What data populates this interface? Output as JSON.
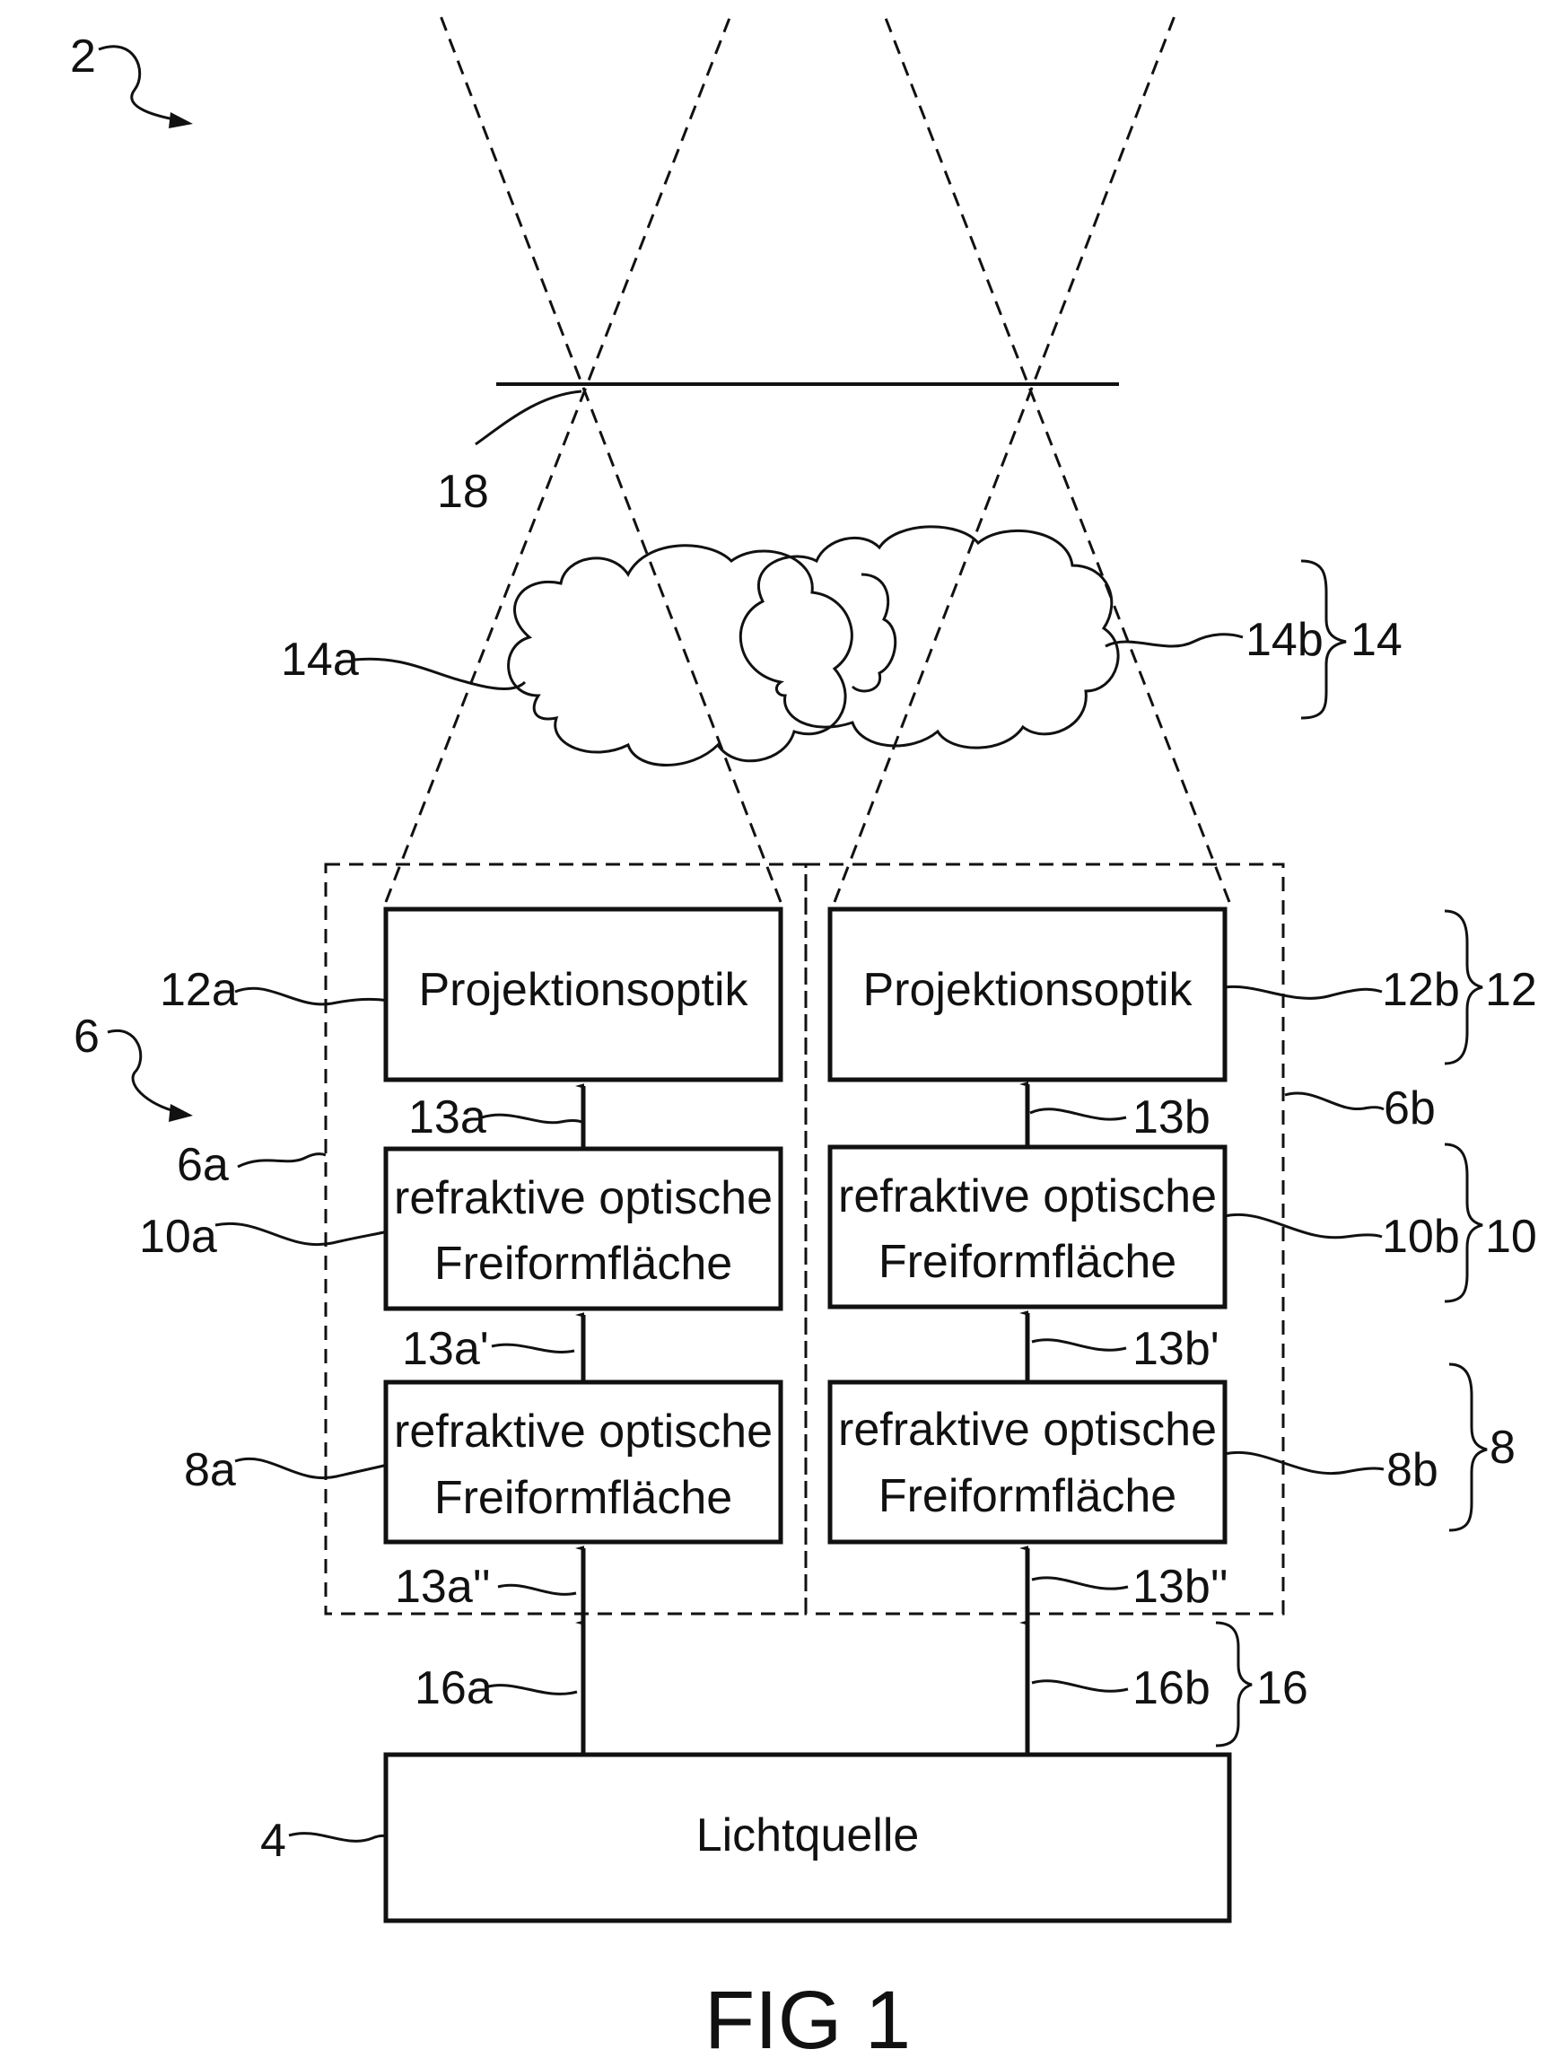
{
  "figure": {
    "caption": "FIG 1",
    "system_ref": "2",
    "group_refs": {
      "module_group": "6",
      "module_a": "6a",
      "module_b": "6b"
    },
    "boxes": {
      "light_source": "Lichtquelle",
      "projection_a": "Projektionsoptik",
      "projection_b": "Projektionsoptik",
      "freeform_10a": [
        "refraktive optische",
        "Freiformfläche"
      ],
      "freeform_10b": [
        "refraktive optische",
        "Freiformfläche"
      ],
      "freeform_8a": [
        "refraktive optische",
        "Freiformfläche"
      ],
      "freeform_8b": [
        "refraktive optische",
        "Freiformfläche"
      ]
    },
    "refs": {
      "r12a": "12a",
      "r12b": "12b",
      "r12": "12",
      "r10a": "10a",
      "r10b": "10b",
      "r10": "10",
      "r8a": "8a",
      "r8b": "8b",
      "r8": "8",
      "r13a": "13a",
      "r13b": "13b",
      "r13a1": "13a'",
      "r13b1": "13b'",
      "r13a2": "13a''",
      "r13b2": "13b''",
      "r16a": "16a",
      "r16b": "16b",
      "r16": "16",
      "r14a": "14a",
      "r14b": "14b",
      "r14": "14",
      "r18": "18",
      "r4": "4"
    }
  }
}
